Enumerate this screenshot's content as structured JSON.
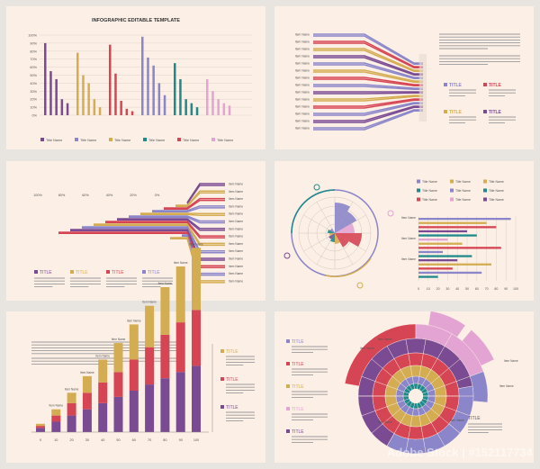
{
  "colors": {
    "purple": "#7a4b93",
    "lavender": "#8b86c9",
    "mustard": "#d4ad52",
    "teal": "#1e8a8c",
    "red": "#d64554",
    "pink": "#e4a4d3",
    "bg": "#fcefe5",
    "text": "#555555"
  },
  "watermark": "Adobe Stock | #152117734",
  "chart_data": [
    {
      "type": "bar",
      "title": "INFOGRAPHIC EDITABLE TEMPLATE",
      "yticks": [
        "100%",
        "90%",
        "80%",
        "70%",
        "60%",
        "50%",
        "40%",
        "30%",
        "20%",
        "10%",
        "0%"
      ],
      "ylim": [
        0,
        100
      ],
      "groups": [
        {
          "color": "purple",
          "values": [
            90,
            55,
            45,
            20,
            15
          ]
        },
        {
          "color": "mustard",
          "values": [
            78,
            50,
            40,
            20,
            10
          ]
        },
        {
          "color": "red",
          "values": [
            88,
            52,
            18,
            8,
            5
          ]
        },
        {
          "color": "lavender",
          "values": [
            98,
            72,
            62,
            40,
            25
          ]
        },
        {
          "color": "teal",
          "values": [
            65,
            45,
            20,
            15,
            10
          ]
        },
        {
          "color": "pink",
          "values": [
            45,
            30,
            20,
            15,
            12
          ]
        }
      ],
      "legend": [
        "Title Name",
        "Title Name",
        "Title Name",
        "Title Name",
        "Title Name",
        "Title Name"
      ],
      "legend_colors": [
        "purple",
        "lavender",
        "mustard",
        "teal",
        "red",
        "pink"
      ]
    },
    {
      "type": "bar",
      "item_label": "Item Name",
      "rows": 14,
      "paragraph": "Lorem ipsum dolor sit amet, consectetur adipiscing elit, sed do eiusmod tempor incididunt ut labore et dolore magna aliqua.",
      "titles": [
        {
          "label": "TITLE",
          "color": "lavender"
        },
        {
          "label": "TITLE",
          "color": "red"
        },
        {
          "label": "TITLE",
          "color": "mustard"
        },
        {
          "label": "TITLE",
          "color": "purple"
        }
      ],
      "title_text": "Lorem ipsum dolor sit amet, consectetur"
    },
    {
      "type": "bar",
      "xticks": [
        "100%",
        "80%",
        "60%",
        "40%",
        "20%",
        "0%"
      ],
      "item_label": "Item Name",
      "rows": 14,
      "titles": [
        {
          "label": "TITLE",
          "color": "purple"
        },
        {
          "label": "TITLE",
          "color": "mustard"
        },
        {
          "label": "TITLE",
          "color": "red"
        },
        {
          "label": "TITLE",
          "color": "lavender"
        }
      ],
      "title_text": "Lorem ipsum dolor sit amet, consectetur adipiscing elit"
    },
    {
      "type": "bar",
      "legend": [
        "Title Name",
        "Title Name",
        "Title Name",
        "Title Name",
        "Title Name",
        "Title Name",
        "Title Name",
        "Title Name",
        "Title Name"
      ],
      "legend_colors": [
        "lavender",
        "mustard",
        "mustard",
        "teal",
        "lavender",
        "teal",
        "red",
        "pink",
        "purple"
      ],
      "xticks": [
        "0",
        "10",
        "20",
        "30",
        "40",
        "50",
        "60",
        "70",
        "80",
        "90",
        "100"
      ],
      "item_label": "Item Name",
      "values": [
        95,
        70,
        80,
        50,
        60,
        30,
        45,
        85,
        25,
        55,
        40,
        75,
        35,
        65,
        20
      ]
    },
    {
      "type": "bar",
      "paragraph": "Lorem ipsum dolor sit amet, consectetur adipiscing elit, sed do eiusmod tempor incididunt ut labore et dolore magna aliqua.",
      "paragraph2": "Duis aute irure dolor in reprehenderit in voluptate velit esse cillum dolore eu fugiat nulla pariatur.",
      "categories": [
        "0",
        "10",
        "20",
        "30",
        "40",
        "50",
        "60",
        "70",
        "80",
        "90",
        "100"
      ],
      "item_label": "Item Name",
      "series": [
        {
          "color": "purple",
          "values": [
            2,
            5,
            8,
            11,
            14,
            17,
            20,
            23,
            26,
            29,
            32
          ]
        },
        {
          "color": "red",
          "values": [
            1,
            3,
            6,
            8,
            10,
            12,
            15,
            18,
            21,
            24,
            27
          ]
        },
        {
          "color": "mustard",
          "values": [
            1,
            3,
            5,
            8,
            11,
            14,
            17,
            20,
            23,
            27,
            30
          ]
        }
      ],
      "titles": [
        {
          "label": "TITLE",
          "color": "mustard"
        },
        {
          "label": "TITLE",
          "color": "red"
        },
        {
          "label": "TITLE",
          "color": "purple"
        }
      ],
      "title_text": "Lorem ipsum dolor sit amet, consectetur adipiscing elit"
    },
    {
      "type": "pie",
      "titles": [
        {
          "label": "TITLE",
          "color": "lavender"
        },
        {
          "label": "TITLE",
          "color": "red"
        },
        {
          "label": "TITLE",
          "color": "mustard"
        },
        {
          "label": "TITLE",
          "color": "pink"
        },
        {
          "label": "TITLE",
          "color": "purple"
        }
      ],
      "title_text": "Lorem ipsum dolor sit amet, consectetur adipiscing elit",
      "main_title": "TITLE",
      "item_label": "Item Name"
    }
  ]
}
